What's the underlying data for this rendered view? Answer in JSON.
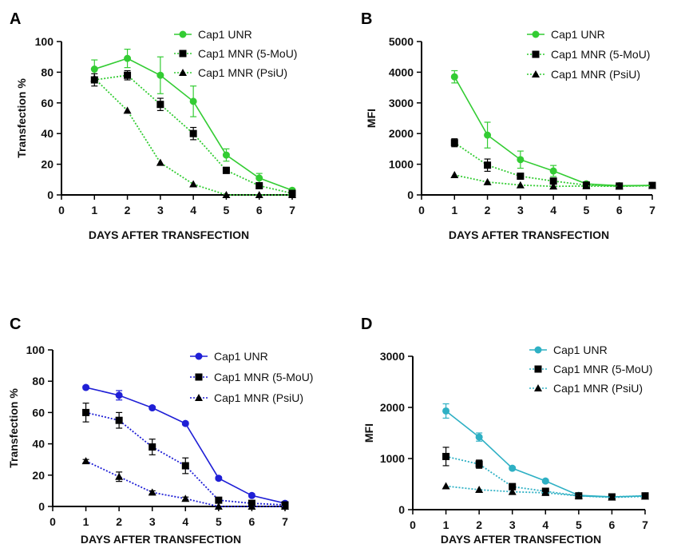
{
  "chart_data": [
    {
      "panel": "A",
      "type": "line",
      "color": "#33cc33",
      "x": [
        1,
        2,
        3,
        4,
        5,
        6,
        7
      ],
      "xlim": [
        0,
        7
      ],
      "xticks": [
        0,
        1,
        2,
        3,
        4,
        5,
        6,
        7
      ],
      "ylim": [
        0,
        100
      ],
      "yticks": [
        0,
        20,
        40,
        60,
        80,
        100
      ],
      "xlabel": "DAYS AFTER TRANSFECTION",
      "ylabel": "Transfection %",
      "legend_position": "top-right",
      "series": [
        {
          "name": "Cap1 UNR",
          "marker": "circle",
          "style": "solid",
          "values": [
            82,
            89,
            78,
            61,
            26,
            11,
            3
          ],
          "errors": [
            6,
            6,
            12,
            10,
            4,
            3,
            1
          ]
        },
        {
          "name": "Cap1 MNR (5-MoU)",
          "marker": "square",
          "style": "dotted",
          "values": [
            75,
            78,
            59,
            40,
            16,
            6,
            1
          ],
          "errors": [
            4,
            3,
            4,
            4,
            2,
            1,
            1
          ]
        },
        {
          "name": "Cap1 MNR (PsiU)",
          "marker": "triangle",
          "style": "dotted",
          "values": [
            76,
            55,
            21,
            7,
            0,
            0,
            0
          ],
          "errors": [
            0,
            0,
            0,
            0,
            0,
            0,
            0
          ]
        }
      ]
    },
    {
      "panel": "B",
      "type": "line",
      "color": "#33cc33",
      "x": [
        1,
        2,
        3,
        4,
        5,
        6,
        7
      ],
      "xlim": [
        0,
        7
      ],
      "xticks": [
        0,
        1,
        2,
        3,
        4,
        5,
        6,
        7
      ],
      "ylim": [
        0,
        5000
      ],
      "yticks": [
        0,
        1000,
        2000,
        3000,
        4000,
        5000
      ],
      "xlabel": "DAYS AFTER TRANSFECTION",
      "ylabel": "MFI",
      "legend_position": "top-right",
      "series": [
        {
          "name": "Cap1 UNR",
          "marker": "circle",
          "style": "solid",
          "values": [
            3850,
            1950,
            1150,
            780,
            360,
            300,
            310
          ],
          "errors": [
            200,
            420,
            280,
            180,
            40,
            30,
            30
          ]
        },
        {
          "name": "Cap1 MNR (5-MoU)",
          "marker": "square",
          "style": "dotted",
          "values": [
            1700,
            970,
            610,
            450,
            320,
            290,
            310
          ],
          "errors": [
            130,
            200,
            60,
            40,
            30,
            20,
            20
          ]
        },
        {
          "name": "Cap1 MNR (PsiU)",
          "marker": "triangle",
          "style": "dotted",
          "values": [
            650,
            420,
            320,
            280,
            290,
            280,
            300
          ],
          "errors": [
            0,
            0,
            0,
            0,
            0,
            0,
            0
          ]
        }
      ]
    },
    {
      "panel": "C",
      "type": "line",
      "color": "#1f1fd6",
      "x": [
        1,
        2,
        3,
        4,
        5,
        6,
        7
      ],
      "xlim": [
        0,
        7
      ],
      "xticks": [
        0,
        1,
        2,
        3,
        4,
        5,
        6,
        7
      ],
      "ylim": [
        0,
        100
      ],
      "yticks": [
        0,
        20,
        40,
        60,
        80,
        100
      ],
      "xlabel": "DAYS AFTER TRANSFECTION",
      "ylabel": "Transfection %",
      "legend_position": "top-right",
      "series": [
        {
          "name": "Cap1 UNR",
          "marker": "circle",
          "style": "solid",
          "values": [
            76,
            71,
            63,
            53,
            18,
            7,
            2
          ],
          "errors": [
            1,
            3,
            1,
            1,
            1,
            1,
            0
          ]
        },
        {
          "name": "Cap1 MNR (5-MoU)",
          "marker": "square",
          "style": "dotted",
          "values": [
            60,
            55,
            38,
            26,
            4,
            2,
            1
          ],
          "errors": [
            6,
            5,
            5,
            5,
            1,
            1,
            0
          ]
        },
        {
          "name": "Cap1 MNR (PsiU)",
          "marker": "triangle",
          "style": "dotted",
          "values": [
            29,
            19,
            9,
            5,
            0,
            0,
            0
          ],
          "errors": [
            1,
            3,
            1,
            1,
            0,
            0,
            0
          ]
        }
      ]
    },
    {
      "panel": "D",
      "type": "line",
      "color": "#2eb0c4",
      "x": [
        1,
        2,
        3,
        4,
        5,
        6,
        7
      ],
      "xlim": [
        0,
        7
      ],
      "xticks": [
        0,
        1,
        2,
        3,
        4,
        5,
        6,
        7
      ],
      "ylim": [
        0,
        3000
      ],
      "yticks": [
        0,
        1000,
        2000,
        3000
      ],
      "xlabel": "DAYS AFTER TRANSFECTION",
      "ylabel": "MFI",
      "legend_position": "top-right",
      "series": [
        {
          "name": "Cap1 UNR",
          "marker": "circle",
          "style": "solid",
          "values": [
            1930,
            1420,
            810,
            560,
            280,
            250,
            270
          ],
          "errors": [
            140,
            80,
            30,
            30,
            30,
            20,
            20
          ]
        },
        {
          "name": "Cap1 MNR (5-MoU)",
          "marker": "square",
          "style": "dotted",
          "values": [
            1040,
            890,
            450,
            360,
            270,
            250,
            270
          ],
          "errors": [
            180,
            80,
            60,
            40,
            30,
            20,
            20
          ]
        },
        {
          "name": "Cap1 MNR (PsiU)",
          "marker": "triangle",
          "style": "dotted",
          "values": [
            460,
            390,
            350,
            330,
            270,
            240,
            260
          ],
          "errors": [
            0,
            0,
            0,
            0,
            0,
            0,
            0
          ]
        }
      ]
    }
  ]
}
